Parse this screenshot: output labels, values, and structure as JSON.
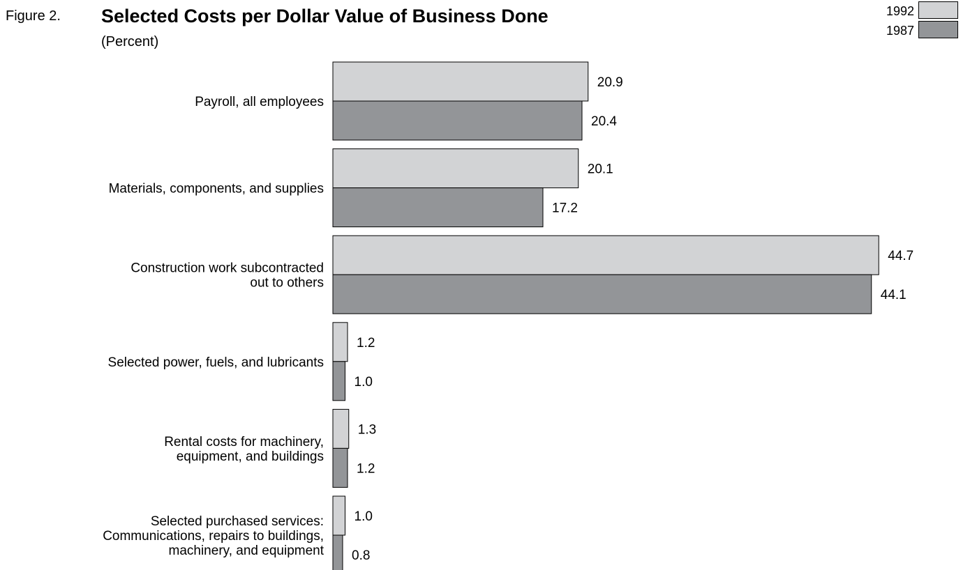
{
  "figure_label": "Figure 2.",
  "legend": [
    {
      "year": "1992",
      "color": "#d2d3d5"
    },
    {
      "year": "1987",
      "color": "#939598"
    }
  ],
  "chart_data": {
    "type": "bar",
    "orientation": "horizontal",
    "title": "Selected Costs per Dollar Value of Business Done",
    "subtitle": "(Percent)",
    "categories": [
      [
        "Payroll, all employees"
      ],
      [
        "Materials, components, and supplies"
      ],
      [
        "Construction work subcontracted",
        "out to others"
      ],
      [
        "Selected power, fuels, and lubricants"
      ],
      [
        "Rental costs for machinery,",
        "equipment, and buildings"
      ],
      [
        "Selected purchased services:",
        "Communications, repairs to buildings,",
        "machinery, and equipment"
      ]
    ],
    "series": [
      {
        "name": "1992",
        "color": "#d2d3d5",
        "values": [
          20.9,
          20.1,
          44.7,
          1.2,
          1.3,
          1.0
        ],
        "labels": [
          "20.9",
          "20.1",
          "44.7",
          "1.2",
          "1.3",
          "1.0"
        ]
      },
      {
        "name": "1987",
        "color": "#939598",
        "values": [
          20.4,
          17.2,
          44.1,
          1.0,
          1.2,
          0.8
        ],
        "labels": [
          "20.4",
          "17.2",
          "44.1",
          "1.0",
          "1.2",
          "0.8"
        ]
      }
    ],
    "xlim": [
      0,
      45
    ],
    "grid": false,
    "legend_position": "top-right"
  }
}
